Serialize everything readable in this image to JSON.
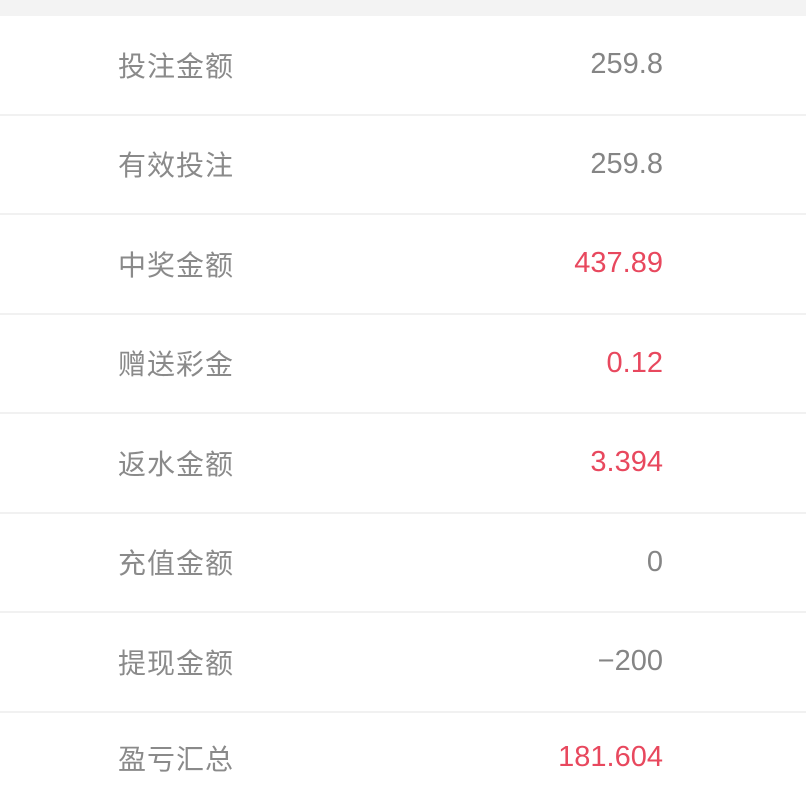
{
  "colors": {
    "background": "#ffffff",
    "top_strip": "#f3f3f3",
    "divider": "#f1f1f1",
    "label_gray": "#8a8a8a",
    "value_gray": "#858585",
    "value_red": "#e8485e"
  },
  "rows": [
    {
      "label": "投注金额",
      "value": "259.8",
      "highlight": false
    },
    {
      "label": "有效投注",
      "value": "259.8",
      "highlight": false
    },
    {
      "label": "中奖金额",
      "value": "437.89",
      "highlight": true
    },
    {
      "label": "赠送彩金",
      "value": "0.12",
      "highlight": true
    },
    {
      "label": "返水金额",
      "value": "3.394",
      "highlight": true
    },
    {
      "label": "充值金额",
      "value": "0",
      "highlight": false
    },
    {
      "label": "提现金额",
      "value": "−200",
      "highlight": false
    },
    {
      "label": "盈亏汇总",
      "value": "181.604",
      "highlight": true
    }
  ]
}
